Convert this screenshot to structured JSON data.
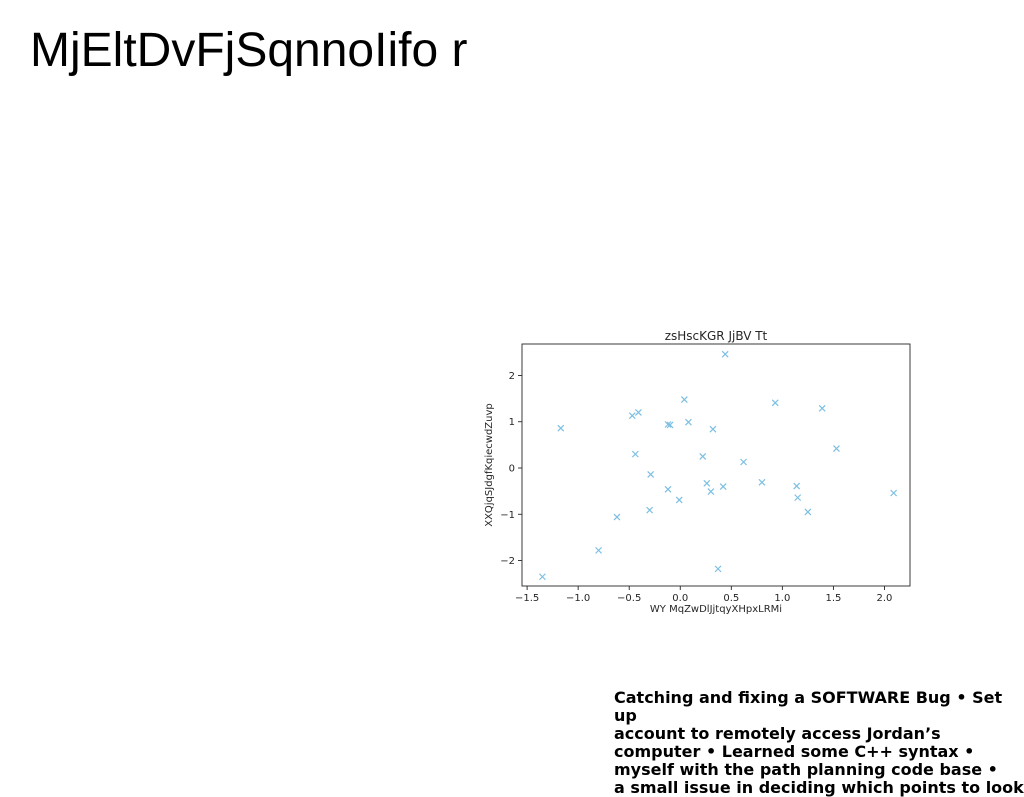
{
  "page": {
    "title": "MjEltDvFjSqnnoIifo r",
    "body_text": "Catching and fixing a SOFTWARE Bug • Set up\naccount to remotely access Jordan’s\ncomputer • Learned some C++ syntax •\nmyself with the path planning code base •\na small issue in deciding which points to look"
  },
  "chart_data": {
    "type": "scatter",
    "title": "zsHscKGR JjBV Tt",
    "xlabel": "WY MqZwDlJjtqyXHpxLRMi",
    "ylabel": "XXQjqSJdgfKqiecwdZuvp",
    "xlim": [
      -1.55,
      2.25
    ],
    "ylim": [
      -2.55,
      2.68
    ],
    "xticks": [
      -1.5,
      -1.0,
      -0.5,
      0.0,
      0.5,
      1.0,
      1.5,
      2.0
    ],
    "xtick_labels": [
      "−1.5",
      "−1.0",
      "−0.5",
      "0.0",
      "0.5",
      "1.0",
      "1.5",
      "2.0"
    ],
    "yticks": [
      -2,
      -1,
      0,
      1,
      2
    ],
    "ytick_labels": [
      "−2",
      "−1",
      "0",
      "1",
      "2"
    ],
    "grid": false,
    "marker": "x",
    "color": "#7bbfe3",
    "x": [
      -1.35,
      -1.17,
      -0.8,
      -0.62,
      -0.47,
      -0.44,
      -0.41,
      -0.3,
      -0.29,
      -0.12,
      -0.12,
      -0.1,
      -0.01,
      0.04,
      0.08,
      0.22,
      0.26,
      0.3,
      0.32,
      0.37,
      0.42,
      0.44,
      0.62,
      0.8,
      0.93,
      1.14,
      1.15,
      1.25,
      1.39,
      1.53,
      2.09
    ],
    "y": [
      -2.35,
      0.86,
      -1.78,
      -1.06,
      1.13,
      0.3,
      1.2,
      -0.91,
      -0.14,
      0.94,
      -0.46,
      0.93,
      -0.69,
      1.48,
      0.99,
      0.25,
      -0.33,
      -0.51,
      0.84,
      -2.18,
      -0.4,
      2.46,
      0.13,
      -0.31,
      1.41,
      -0.39,
      -0.64,
      -0.95,
      1.29,
      0.42,
      -0.54
    ]
  }
}
